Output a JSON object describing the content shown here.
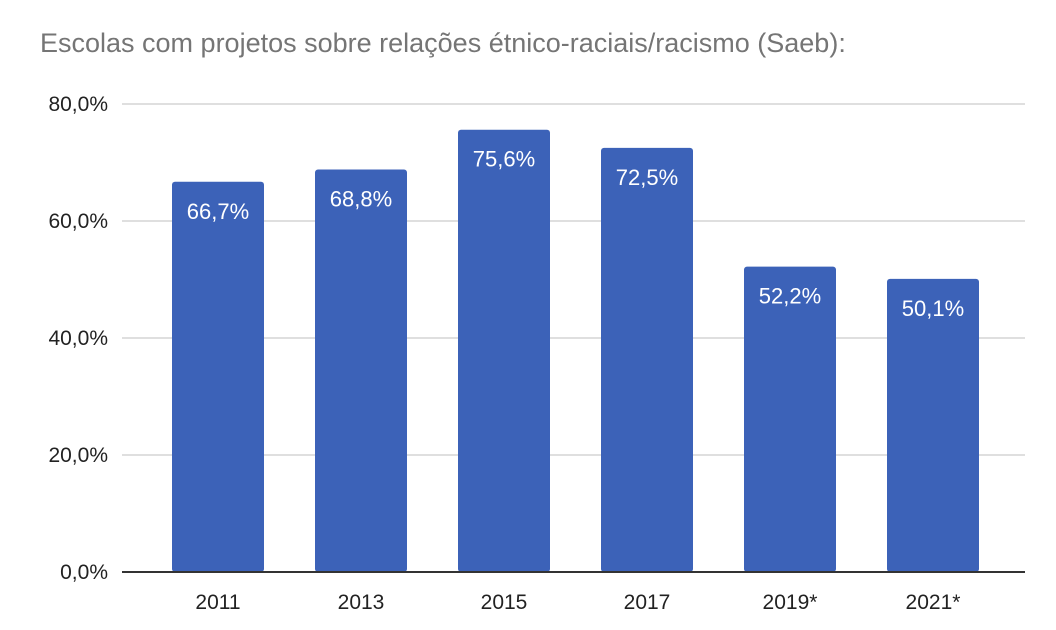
{
  "chart_data": {
    "type": "bar",
    "title": "Escolas com projetos sobre relações étnico-raciais/racismo (Saeb):",
    "categories": [
      "2011",
      "2013",
      "2015",
      "2017",
      "2019*",
      "2021*"
    ],
    "values": [
      66.7,
      68.8,
      75.6,
      72.5,
      52.2,
      50.1
    ],
    "data_labels": [
      "66,7%",
      "68,8%",
      "75,6%",
      "72,5%",
      "52,2%",
      "50,1%"
    ],
    "y_ticks": [
      0,
      20,
      40,
      60,
      80
    ],
    "y_tick_labels": [
      "0,0%",
      "20,0%",
      "40,0%",
      "60,0%",
      "80,0%"
    ],
    "xlabel": "",
    "ylabel": "",
    "ylim": [
      0,
      80
    ],
    "grid": true,
    "legend": "none",
    "bar_color": "#3c62b8",
    "grid_color": "#cccccc",
    "axis_color": "#333333"
  }
}
